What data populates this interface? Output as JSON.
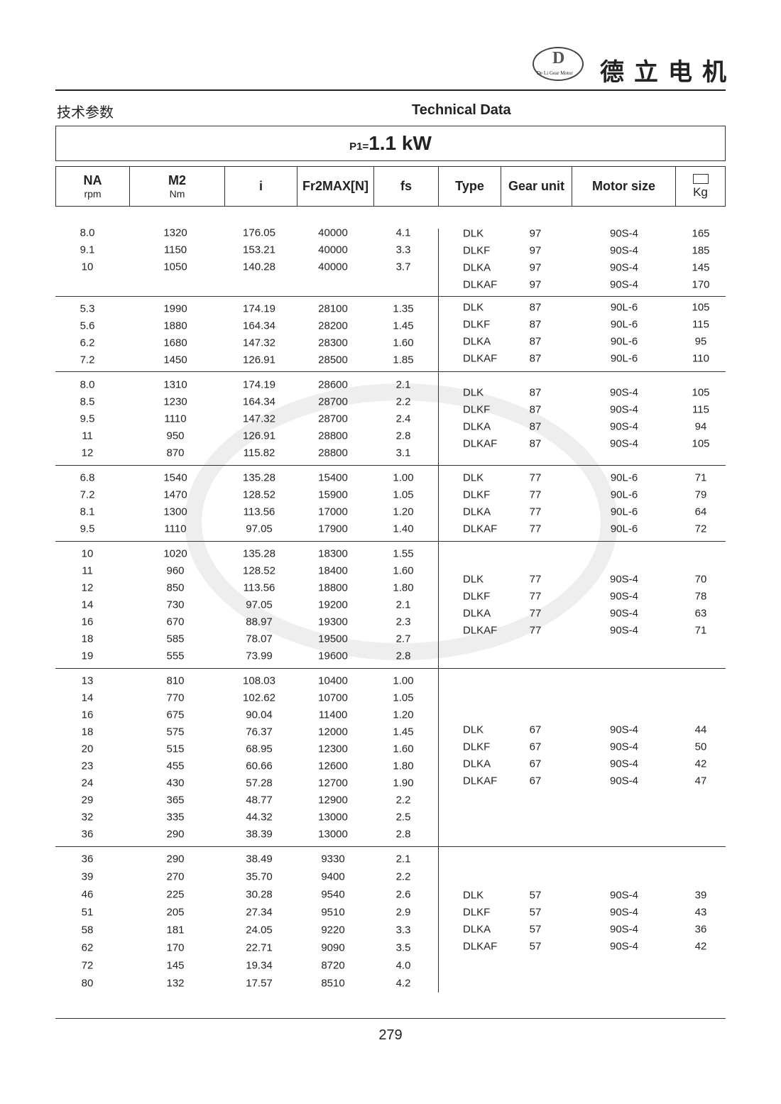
{
  "brand": {
    "logo_text": "De Li Gear Motor",
    "logo_chars": "德立",
    "name": "德立电机"
  },
  "title_cn": "技术参数",
  "title_en": "Technical Data",
  "power": {
    "label": "P1=",
    "value": "1.1 kW"
  },
  "headers": {
    "na": "NA",
    "na_unit": "rpm",
    "m2": "M2",
    "m2_unit": "Nm",
    "i": "i",
    "fr": "Fr2MAX[N]",
    "fs": "fs",
    "type": "Type",
    "gear": "Gear unit",
    "motor": "Motor size",
    "kg": "Kg"
  },
  "groups": [
    {
      "rows": [
        [
          "8.0",
          "1320",
          "176.05",
          "40000",
          "4.1"
        ],
        [
          "9.1",
          "1150",
          "153.21",
          "40000",
          "3.3"
        ],
        [
          "10",
          "1050",
          "140.28",
          "40000",
          "3.7"
        ]
      ],
      "types": [
        [
          "DLK",
          "97",
          "90S-4",
          "165"
        ],
        [
          "DLKF",
          "97",
          "90S-4",
          "185"
        ],
        [
          "DLKA",
          "97",
          "90S-4",
          "145"
        ],
        [
          "DLKAF",
          "97",
          "90S-4",
          "170"
        ]
      ]
    },
    {
      "rows": [
        [
          "5.3",
          "1990",
          "174.19",
          "28100",
          "1.35"
        ],
        [
          "5.6",
          "1880",
          "164.34",
          "28200",
          "1.45"
        ],
        [
          "6.2",
          "1680",
          "147.32",
          "28300",
          "1.60"
        ],
        [
          "7.2",
          "1450",
          "126.91",
          "28500",
          "1.85"
        ]
      ],
      "types": [
        [
          "DLK",
          "87",
          "90L-6",
          "105"
        ],
        [
          "DLKF",
          "87",
          "90L-6",
          "115"
        ],
        [
          "DLKA",
          "87",
          "90L-6",
          "95"
        ],
        [
          "DLKAF",
          "87",
          "90L-6",
          "110"
        ]
      ]
    },
    {
      "rows": [
        [
          "8.0",
          "1310",
          "174.19",
          "28600",
          "2.1"
        ],
        [
          "8.5",
          "1230",
          "164.34",
          "28700",
          "2.2"
        ],
        [
          "9.5",
          "1110",
          "147.32",
          "28700",
          "2.4"
        ],
        [
          "11",
          "950",
          "126.91",
          "28800",
          "2.8"
        ],
        [
          "12",
          "870",
          "115.82",
          "28800",
          "3.1"
        ]
      ],
      "types": [
        [
          "DLK",
          "87",
          "90S-4",
          "105"
        ],
        [
          "DLKF",
          "87",
          "90S-4",
          "115"
        ],
        [
          "DLKA",
          "87",
          "90S-4",
          "94"
        ],
        [
          "DLKAF",
          "87",
          "90S-4",
          "105"
        ]
      ]
    },
    {
      "rows": [
        [
          "6.8",
          "1540",
          "135.28",
          "15400",
          "1.00"
        ],
        [
          "7.2",
          "1470",
          "128.52",
          "15900",
          "1.05"
        ],
        [
          "8.1",
          "1300",
          "113.56",
          "17000",
          "1.20"
        ],
        [
          "9.5",
          "1110",
          "97.05",
          "17900",
          "1.40"
        ]
      ],
      "types": [
        [
          "DLK",
          "77",
          "90L-6",
          "71"
        ],
        [
          "DLKF",
          "77",
          "90L-6",
          "79"
        ],
        [
          "DLKA",
          "77",
          "90L-6",
          "64"
        ],
        [
          "DLKAF",
          "77",
          "90L-6",
          "72"
        ]
      ]
    },
    {
      "rows": [
        [
          "10",
          "1020",
          "135.28",
          "18300",
          "1.55"
        ],
        [
          "11",
          "960",
          "128.52",
          "18400",
          "1.60"
        ],
        [
          "12",
          "850",
          "113.56",
          "18800",
          "1.80"
        ],
        [
          "14",
          "730",
          "97.05",
          "19200",
          "2.1"
        ],
        [
          "16",
          "670",
          "88.97",
          "19300",
          "2.3"
        ],
        [
          "18",
          "585",
          "78.07",
          "19500",
          "2.7"
        ],
        [
          "19",
          "555",
          "73.99",
          "19600",
          "2.8"
        ]
      ],
      "types": [
        [
          "DLK",
          "77",
          "90S-4",
          "70"
        ],
        [
          "DLKF",
          "77",
          "90S-4",
          "78"
        ],
        [
          "DLKA",
          "77",
          "90S-4",
          "63"
        ],
        [
          "DLKAF",
          "77",
          "90S-4",
          "71"
        ]
      ]
    },
    {
      "rows": [
        [
          "13",
          "810",
          "108.03",
          "10400",
          "1.00"
        ],
        [
          "14",
          "770",
          "102.62",
          "10700",
          "1.05"
        ],
        [
          "16",
          "675",
          "90.04",
          "11400",
          "1.20"
        ],
        [
          "18",
          "575",
          "76.37",
          "12000",
          "1.45"
        ],
        [
          "20",
          "515",
          "68.95",
          "12300",
          "1.60"
        ],
        [
          "23",
          "455",
          "60.66",
          "12600",
          "1.80"
        ],
        [
          "24",
          "430",
          "57.28",
          "12700",
          "1.90"
        ],
        [
          "29",
          "365",
          "48.77",
          "12900",
          "2.2"
        ],
        [
          "32",
          "335",
          "44.32",
          "13000",
          "2.5"
        ],
        [
          "36",
          "290",
          "38.39",
          "13000",
          "2.8"
        ]
      ],
      "types": [
        [
          "DLK",
          "67",
          "90S-4",
          "44"
        ],
        [
          "DLKF",
          "67",
          "90S-4",
          "50"
        ],
        [
          "DLKA",
          "67",
          "90S-4",
          "42"
        ],
        [
          "DLKAF",
          "67",
          "90S-4",
          "47"
        ]
      ]
    },
    {
      "rows": [
        [
          "36",
          "290",
          "38.49",
          "9330",
          "2.1"
        ],
        [
          "39",
          "270",
          "35.70",
          "9400",
          "2.2"
        ],
        [
          "46",
          "225",
          "30.28",
          "9540",
          "2.6"
        ],
        [
          "51",
          "205",
          "27.34",
          "9510",
          "2.9"
        ],
        [
          "58",
          "181",
          "24.05",
          "9220",
          "3.3"
        ],
        [
          "62",
          "170",
          "22.71",
          "9090",
          "3.5"
        ],
        [
          "72",
          "145",
          "19.34",
          "8720",
          "4.0"
        ],
        [
          "80",
          "132",
          "17.57",
          "8510",
          "4.2"
        ]
      ],
      "types": [
        [
          "DLK",
          "57",
          "90S-4",
          "39"
        ],
        [
          "DLKF",
          "57",
          "90S-4",
          "43"
        ],
        [
          "DLKA",
          "57",
          "90S-4",
          "36"
        ],
        [
          "DLKAF",
          "57",
          "90S-4",
          "42"
        ]
      ]
    }
  ],
  "page_number": "279"
}
